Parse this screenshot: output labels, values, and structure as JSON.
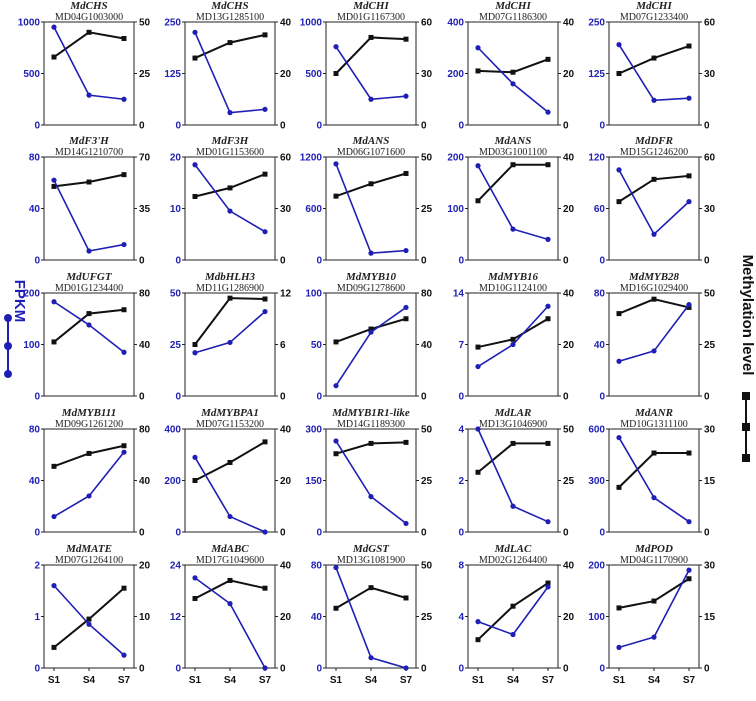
{
  "figure": {
    "left_axis_title": "FPKM",
    "right_axis_title": "Methylation level",
    "colors": {
      "fpkm": "#1f1fb5",
      "methylation": "#111111",
      "frame": "#222222"
    }
  },
  "chart_data": [
    {
      "type": "line",
      "gene": "MdCHS",
      "id": "MD04G1003000",
      "categories": [
        "S1",
        "S4",
        "S7"
      ],
      "y_left": {
        "ticks": [
          0,
          500,
          1000
        ],
        "ylim": [
          0,
          1000
        ]
      },
      "y_right": {
        "ticks": [
          0,
          25,
          50
        ],
        "ylim": [
          0,
          50
        ]
      },
      "series": [
        {
          "values": [
            950,
            290,
            250
          ]
        },
        {
          "values": [
            33,
            45,
            42
          ]
        }
      ]
    },
    {
      "type": "line",
      "gene": "MdCHS",
      "id": "MD13G1285100",
      "categories": [
        "S1",
        "S4",
        "S7"
      ],
      "y_left": {
        "ticks": [
          0,
          125,
          250
        ],
        "ylim": [
          0,
          250
        ]
      },
      "y_right": {
        "ticks": [
          0,
          20,
          40
        ],
        "ylim": [
          0,
          40
        ]
      },
      "series": [
        {
          "values": [
            225,
            30,
            38
          ]
        },
        {
          "values": [
            26,
            32,
            35
          ]
        }
      ]
    },
    {
      "type": "line",
      "gene": "MdCHI",
      "id": "MD01G1167300",
      "categories": [
        "S1",
        "S4",
        "S7"
      ],
      "y_left": {
        "ticks": [
          0,
          500,
          1000
        ],
        "ylim": [
          0,
          1000
        ]
      },
      "y_right": {
        "ticks": [
          0,
          30,
          60
        ],
        "ylim": [
          0,
          60
        ]
      },
      "series": [
        {
          "values": [
            760,
            250,
            280
          ]
        },
        {
          "values": [
            30,
            51,
            50
          ]
        }
      ]
    },
    {
      "type": "line",
      "gene": "MdCHI",
      "id": "MD07G1186300",
      "categories": [
        "S1",
        "S4",
        "S7"
      ],
      "y_left": {
        "ticks": [
          0,
          200,
          400
        ],
        "ylim": [
          0,
          400
        ]
      },
      "y_right": {
        "ticks": [
          0,
          20,
          40
        ],
        "ylim": [
          0,
          40
        ]
      },
      "series": [
        {
          "values": [
            300,
            160,
            50
          ]
        },
        {
          "values": [
            21,
            20.5,
            25.5
          ]
        }
      ]
    },
    {
      "type": "line",
      "gene": "MdCHI",
      "id": "MD07G1233400",
      "categories": [
        "S1",
        "S4",
        "S7"
      ],
      "y_left": {
        "ticks": [
          0,
          125,
          250
        ],
        "ylim": [
          0,
          250
        ]
      },
      "y_right": {
        "ticks": [
          0,
          30,
          60
        ],
        "ylim": [
          0,
          60
        ]
      },
      "series": [
        {
          "values": [
            195,
            60,
            65
          ]
        },
        {
          "values": [
            30,
            39,
            46
          ]
        }
      ]
    },
    {
      "type": "line",
      "gene": "MdF3'H",
      "id": "MD14G1210700",
      "categories": [
        "S1",
        "S4",
        "S7"
      ],
      "y_left": {
        "ticks": [
          0,
          40,
          80
        ],
        "ylim": [
          0,
          80
        ]
      },
      "y_right": {
        "ticks": [
          0,
          35,
          70
        ],
        "ylim": [
          0,
          70
        ]
      },
      "series": [
        {
          "values": [
            62,
            7,
            12
          ]
        },
        {
          "values": [
            50,
            53,
            58
          ]
        }
      ]
    },
    {
      "type": "line",
      "gene": "MdF3H",
      "id": "MD01G1153600",
      "categories": [
        "S1",
        "S4",
        "S7"
      ],
      "y_left": {
        "ticks": [
          0,
          10,
          20
        ],
        "ylim": [
          0,
          20
        ]
      },
      "y_right": {
        "ticks": [
          0,
          30,
          60
        ],
        "ylim": [
          0,
          60
        ]
      },
      "series": [
        {
          "values": [
            18.5,
            9.5,
            5.5
          ]
        },
        {
          "values": [
            37,
            42,
            50
          ]
        }
      ]
    },
    {
      "type": "line",
      "gene": "MdANS",
      "id": "MD06G1071600",
      "categories": [
        "S1",
        "S4",
        "S7"
      ],
      "y_left": {
        "ticks": [
          0,
          600,
          1200
        ],
        "ylim": [
          0,
          1200
        ]
      },
      "y_right": {
        "ticks": [
          0,
          25,
          50
        ],
        "ylim": [
          0,
          50
        ]
      },
      "series": [
        {
          "values": [
            1120,
            80,
            110
          ]
        },
        {
          "values": [
            31,
            37,
            42
          ]
        }
      ]
    },
    {
      "type": "line",
      "gene": "MdANS",
      "id": "MD03G1001100",
      "categories": [
        "S1",
        "S4",
        "S7"
      ],
      "y_left": {
        "ticks": [
          0,
          100,
          200
        ],
        "ylim": [
          0,
          200
        ]
      },
      "y_right": {
        "ticks": [
          0,
          20,
          40
        ],
        "ylim": [
          0,
          40
        ]
      },
      "series": [
        {
          "values": [
            183,
            60,
            40
          ]
        },
        {
          "values": [
            23,
            37,
            37
          ]
        }
      ]
    },
    {
      "type": "line",
      "gene": "MdDFR",
      "id": "MD15G1246200",
      "categories": [
        "S1",
        "S4",
        "S7"
      ],
      "y_left": {
        "ticks": [
          0,
          60,
          120
        ],
        "ylim": [
          0,
          120
        ]
      },
      "y_right": {
        "ticks": [
          0,
          30,
          60
        ],
        "ylim": [
          0,
          60
        ]
      },
      "series": [
        {
          "values": [
            105,
            30,
            68
          ]
        },
        {
          "values": [
            34,
            47,
            49
          ]
        }
      ]
    },
    {
      "type": "line",
      "gene": "MdUFGT",
      "id": "MD01G1234400",
      "categories": [
        "S1",
        "S4",
        "S7"
      ],
      "y_left": {
        "ticks": [
          0,
          100,
          200
        ],
        "ylim": [
          0,
          200
        ]
      },
      "y_right": {
        "ticks": [
          0,
          40,
          80
        ],
        "ylim": [
          0,
          80
        ]
      },
      "series": [
        {
          "values": [
            183,
            138,
            85
          ]
        },
        {
          "values": [
            42,
            64,
            67
          ]
        }
      ]
    },
    {
      "type": "line",
      "gene": "MdbHLH3",
      "id": "MD11G1286900",
      "categories": [
        "S1",
        "S4",
        "S7"
      ],
      "y_left": {
        "ticks": [
          0,
          25,
          50
        ],
        "ylim": [
          0,
          50
        ]
      },
      "y_right": {
        "ticks": [
          0,
          6,
          12
        ],
        "ylim": [
          0,
          12
        ]
      },
      "series": [
        {
          "values": [
            21,
            26,
            41
          ]
        },
        {
          "values": [
            6,
            11.4,
            11.3
          ]
        }
      ]
    },
    {
      "type": "line",
      "gene": "MdMYB10",
      "id": "MD09G1278600",
      "categories": [
        "S1",
        "S4",
        "S7"
      ],
      "y_left": {
        "ticks": [
          0,
          50,
          100
        ],
        "ylim": [
          0,
          100
        ]
      },
      "y_right": {
        "ticks": [
          0,
          40,
          80
        ],
        "ylim": [
          0,
          80
        ]
      },
      "series": [
        {
          "values": [
            10,
            62,
            86
          ]
        },
        {
          "values": [
            42,
            52,
            60
          ]
        }
      ]
    },
    {
      "type": "line",
      "gene": "MdMYB16",
      "id": "MD10G1124100",
      "categories": [
        "S1",
        "S4",
        "S7"
      ],
      "y_left": {
        "ticks": [
          0,
          7,
          14
        ],
        "ylim": [
          0,
          14
        ]
      },
      "y_right": {
        "ticks": [
          0,
          20,
          40
        ],
        "ylim": [
          0,
          40
        ]
      },
      "series": [
        {
          "values": [
            4,
            7,
            12.2
          ]
        },
        {
          "values": [
            19,
            22,
            30
          ]
        }
      ]
    },
    {
      "type": "line",
      "gene": "MdMYB28",
      "id": "MD16G1029400",
      "categories": [
        "S1",
        "S4",
        "S7"
      ],
      "y_left": {
        "ticks": [
          0,
          40,
          80
        ],
        "ylim": [
          0,
          80
        ]
      },
      "y_right": {
        "ticks": [
          0,
          25,
          50
        ],
        "ylim": [
          0,
          50
        ]
      },
      "series": [
        {
          "values": [
            27,
            35,
            71
          ]
        },
        {
          "values": [
            40,
            47,
            43
          ]
        }
      ]
    },
    {
      "type": "line",
      "gene": "MdMYB111",
      "id": "MD09G1261200",
      "categories": [
        "S1",
        "S4",
        "S7"
      ],
      "y_left": {
        "ticks": [
          0,
          40,
          80
        ],
        "ylim": [
          0,
          80
        ]
      },
      "y_right": {
        "ticks": [
          0,
          40,
          80
        ],
        "ylim": [
          0,
          80
        ]
      },
      "series": [
        {
          "values": [
            12,
            28,
            62
          ]
        },
        {
          "values": [
            51,
            61,
            67
          ]
        }
      ]
    },
    {
      "type": "line",
      "gene": "MdMYBPA1",
      "id": "MD07G1153200",
      "categories": [
        "S1",
        "S4",
        "S7"
      ],
      "y_left": {
        "ticks": [
          0,
          200,
          400
        ],
        "ylim": [
          0,
          400
        ]
      },
      "y_right": {
        "ticks": [
          0,
          20,
          40
        ],
        "ylim": [
          0,
          40
        ]
      },
      "series": [
        {
          "values": [
            290,
            60,
            0
          ]
        },
        {
          "values": [
            20,
            27,
            35
          ]
        }
      ]
    },
    {
      "type": "line",
      "gene": "MdMYB1R1-like",
      "id": "MD14G1189300",
      "categories": [
        "S1",
        "S4",
        "S7"
      ],
      "y_left": {
        "ticks": [
          0,
          150,
          300
        ],
        "ylim": [
          0,
          300
        ]
      },
      "y_right": {
        "ticks": [
          0,
          25,
          50
        ],
        "ylim": [
          0,
          50
        ]
      },
      "series": [
        {
          "values": [
            265,
            103,
            25
          ]
        },
        {
          "values": [
            38,
            43,
            43.5
          ]
        }
      ]
    },
    {
      "type": "line",
      "gene": "MdLAR",
      "id": "MD13G1046900",
      "categories": [
        "S1",
        "S4",
        "S7"
      ],
      "y_left": {
        "ticks": [
          0,
          2,
          4
        ],
        "ylim": [
          0,
          4
        ]
      },
      "y_right": {
        "ticks": [
          0,
          25,
          50
        ],
        "ylim": [
          0,
          50
        ]
      },
      "series": [
        {
          "values": [
            4,
            1,
            0.4
          ]
        },
        {
          "values": [
            29,
            43,
            43
          ]
        }
      ]
    },
    {
      "type": "line",
      "gene": "MdANR",
      "id": "MD10G1311100",
      "categories": [
        "S1",
        "S4",
        "S7"
      ],
      "y_left": {
        "ticks": [
          0,
          300,
          600
        ],
        "ylim": [
          0,
          600
        ]
      },
      "y_right": {
        "ticks": [
          0,
          15,
          30
        ],
        "ylim": [
          0,
          30
        ]
      },
      "series": [
        {
          "values": [
            550,
            200,
            60
          ]
        },
        {
          "values": [
            13,
            23,
            23
          ]
        }
      ]
    },
    {
      "type": "line",
      "gene": "MdMATE",
      "id": "MD07G1264100",
      "categories": [
        "S1",
        "S4",
        "S7"
      ],
      "y_left": {
        "ticks": [
          0,
          1,
          2
        ],
        "ylim": [
          0,
          2
        ]
      },
      "y_right": {
        "ticks": [
          0,
          10,
          20
        ],
        "ylim": [
          0,
          20
        ]
      },
      "series": [
        {
          "values": [
            1.6,
            0.85,
            0.25
          ]
        },
        {
          "values": [
            4,
            9.5,
            15.5
          ]
        }
      ]
    },
    {
      "type": "line",
      "gene": "MdABC",
      "id": "MD17G1049600",
      "categories": [
        "S1",
        "S4",
        "S7"
      ],
      "y_left": {
        "ticks": [
          0,
          12,
          24
        ],
        "ylim": [
          0,
          24
        ]
      },
      "y_right": {
        "ticks": [
          0,
          20,
          40
        ],
        "ylim": [
          0,
          40
        ]
      },
      "series": [
        {
          "values": [
            21,
            15,
            0
          ]
        },
        {
          "values": [
            27,
            34,
            31
          ]
        }
      ]
    },
    {
      "type": "line",
      "gene": "MdGST",
      "id": "MD13G1081900",
      "categories": [
        "S1",
        "S4",
        "S7"
      ],
      "y_left": {
        "ticks": [
          0,
          40,
          80
        ],
        "ylim": [
          0,
          80
        ]
      },
      "y_right": {
        "ticks": [
          0,
          25,
          50
        ],
        "ylim": [
          0,
          50
        ]
      },
      "series": [
        {
          "values": [
            78,
            8,
            0
          ]
        },
        {
          "values": [
            29,
            39,
            34
          ]
        }
      ]
    },
    {
      "type": "line",
      "gene": "MdLAC",
      "id": "MD02G1264400",
      "categories": [
        "S1",
        "S4",
        "S7"
      ],
      "y_left": {
        "ticks": [
          0,
          4,
          8
        ],
        "ylim": [
          0,
          8
        ]
      },
      "y_right": {
        "ticks": [
          0,
          20,
          40
        ],
        "ylim": [
          0,
          40
        ]
      },
      "series": [
        {
          "values": [
            3.6,
            2.6,
            6.3
          ]
        },
        {
          "values": [
            11,
            24,
            33
          ]
        }
      ]
    },
    {
      "type": "line",
      "gene": "MdPOD",
      "id": "MD04G1170900",
      "categories": [
        "S1",
        "S4",
        "S7"
      ],
      "y_left": {
        "ticks": [
          0,
          100,
          200
        ],
        "ylim": [
          0,
          200
        ]
      },
      "y_right": {
        "ticks": [
          0,
          15,
          30
        ],
        "ylim": [
          0,
          30
        ]
      },
      "series": [
        {
          "values": [
            40,
            60,
            190
          ]
        },
        {
          "values": [
            17.5,
            19.5,
            26
          ]
        }
      ]
    }
  ]
}
